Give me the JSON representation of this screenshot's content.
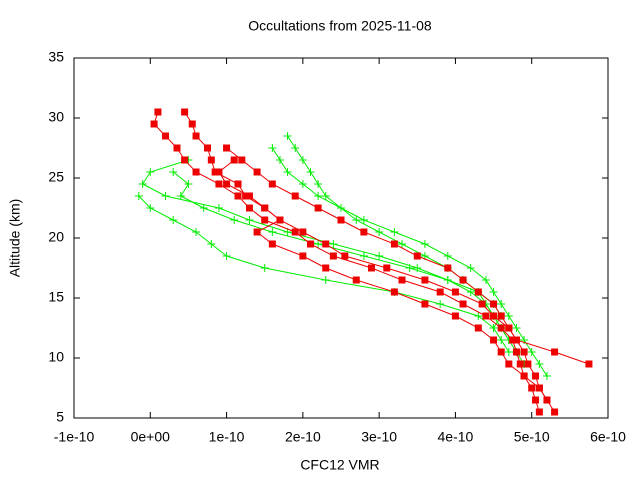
{
  "chart_data": {
    "type": "line",
    "title": "Occultations from 2025-11-08",
    "x_label": "CFC12 VMR",
    "y_label": "Altitude (km)",
    "xlim": [
      -1e-10,
      6e-10
    ],
    "ylim": [
      5,
      35
    ],
    "xticks": [
      {
        "value": -1e-10,
        "label": "-1e-10"
      },
      {
        "value": 0,
        "label": "0e+00"
      },
      {
        "value": 1e-10,
        "label": "1e-10"
      },
      {
        "value": 2e-10,
        "label": "2e-10"
      },
      {
        "value": 3e-10,
        "label": "3e-10"
      },
      {
        "value": 4e-10,
        "label": "4e-10"
      },
      {
        "value": 5e-10,
        "label": "5e-10"
      },
      {
        "value": 6e-10,
        "label": "6e-10"
      }
    ],
    "yticks": [
      5,
      10,
      15,
      20,
      25,
      30,
      35
    ],
    "grid": false,
    "series": [
      {
        "color": "#00ee00",
        "marker": "plus",
        "x": [
          1.6e-10,
          1.7e-10,
          1.8e-10,
          2e-10,
          2.2e-10,
          2.5e-10,
          2.8e-10,
          3.2e-10,
          3.6e-10,
          3.9e-10,
          4.2e-10,
          4.4e-10,
          4.5e-10,
          4.6e-10,
          4.7e-10,
          4.8e-10,
          4.9e-10,
          5e-10,
          5.1e-10,
          5.2e-10
        ],
        "y": [
          27.5,
          26.5,
          25.5,
          24.5,
          23.5,
          22.5,
          21.5,
          20.5,
          19.5,
          18.5,
          17.5,
          16.5,
          15.5,
          14.5,
          13.5,
          12.5,
          11.5,
          10.5,
          9.5,
          8.5
        ]
      },
      {
        "color": "#00ee00",
        "marker": "plus",
        "x": [
          -1.5e-11,
          0,
          3e-11,
          6e-11,
          8e-11,
          1e-10,
          1.5e-10,
          2.3e-10,
          3.2e-10,
          3.8e-10,
          4.3e-10,
          4.5e-10,
          4.6e-10,
          4.7e-10
        ],
        "y": [
          23.5,
          22.5,
          21.5,
          20.5,
          19.5,
          18.5,
          17.5,
          16.5,
          15.5,
          14.5,
          13.5,
          12.5,
          11.5,
          10.5
        ]
      },
      {
        "color": "#00ee00",
        "marker": "plus",
        "x": [
          5e-11,
          0,
          -1e-11,
          2e-11,
          9e-11,
          1.3e-10,
          1.8e-10,
          2.4e-10,
          3e-10,
          3.5e-10,
          3.9e-10,
          4.2e-10,
          4.4e-10,
          4.5e-10,
          4.6e-10,
          4.7e-10
        ],
        "y": [
          26.5,
          25.5,
          24.5,
          23.5,
          22.5,
          21.5,
          20.5,
          19.5,
          18.5,
          17.5,
          16.5,
          15.5,
          14.5,
          13.5,
          12.5,
          11.5
        ]
      },
      {
        "color": "#00ee00",
        "marker": "plus",
        "x": [
          1.8e-10,
          1.9e-10,
          2e-10,
          2.1e-10,
          2.2e-10,
          2.3e-10,
          2.5e-10,
          2.7e-10,
          3e-10,
          3.3e-10,
          3.6e-10,
          3.9e-10,
          4.1e-10,
          4.3e-10,
          4.4e-10,
          4.5e-10,
          4.6e-10,
          4.7e-10,
          4.8e-10,
          4.9e-10
        ],
        "y": [
          28.5,
          27.5,
          26.5,
          25.5,
          24.5,
          23.5,
          22.5,
          21.5,
          20.5,
          19.5,
          18.5,
          17.5,
          16.5,
          15.5,
          14.5,
          13.5,
          12.5,
          11.5,
          10.5,
          9.5
        ]
      },
      {
        "color": "#00ee00",
        "marker": "plus",
        "x": [
          3e-11,
          5e-11,
          4e-11,
          7e-11,
          1.1e-10,
          1.6e-10,
          2.2e-10,
          2.8e-10,
          3.4e-10,
          3.9e-10,
          4.3e-10,
          4.5e-10,
          4.6e-10,
          4.5e-10
        ],
        "y": [
          25.5,
          24.5,
          23.5,
          22.5,
          21.5,
          20.5,
          19.5,
          18.5,
          17.5,
          16.5,
          15.5,
          14.5,
          13.5,
          12.5
        ]
      },
      {
        "color": "#ee0000",
        "marker": "square",
        "x": [
          1e-11,
          5e-12,
          2e-11,
          3.5e-11,
          4.5e-11,
          6e-11,
          9e-11,
          1.15e-10,
          1.3e-10,
          1.5e-10,
          1.9e-10,
          2.1e-10,
          2.4e-10,
          2.9e-10,
          3.3e-10,
          3.8e-10,
          4.1e-10,
          4.4e-10,
          4.6e-10,
          4.75e-10,
          4.8e-10,
          4.85e-10,
          4.9e-10,
          5e-10,
          5.05e-10,
          5.1e-10
        ],
        "y": [
          30.5,
          29.5,
          28.5,
          27.5,
          26.5,
          25.5,
          24.5,
          23.5,
          22.5,
          21.5,
          20.5,
          19.5,
          18.5,
          17.5,
          16.5,
          15.5,
          14.5,
          13.5,
          12.5,
          11.5,
          10.5,
          9.5,
          8.5,
          7.5,
          6.5,
          5.5
        ]
      },
      {
        "color": "#ee0000",
        "marker": "square",
        "x": [
          4.5e-11,
          5.5e-11,
          6e-11,
          7.5e-11,
          8e-11,
          8.5e-11,
          1.15e-10,
          1.25e-10,
          1.5e-10,
          1.7e-10,
          2e-10,
          2.3e-10,
          2.55e-10,
          3.1e-10,
          3.6e-10,
          4e-10,
          4.35e-10,
          4.5e-10,
          4.7e-10,
          4.8e-10,
          4.9e-10,
          4.95e-10,
          5.05e-10,
          5.1e-10,
          5.2e-10,
          5.3e-10
        ],
        "y": [
          30.5,
          29.5,
          28.5,
          27.5,
          26.5,
          25.5,
          24.5,
          23.5,
          22.5,
          21.5,
          20.5,
          19.5,
          18.5,
          17.5,
          16.5,
          15.5,
          14.5,
          13.5,
          12.5,
          11.5,
          10.5,
          9.5,
          8.5,
          7.5,
          6.5,
          5.5
        ]
      },
      {
        "color": "#ee0000",
        "marker": "square",
        "x": [
          1e-10,
          1.2e-10,
          1.4e-10,
          1.6e-10,
          1.9e-10,
          2.2e-10,
          2.5e-10,
          2.8e-10,
          3.2e-10,
          3.5e-10,
          3.9e-10,
          4.1e-10,
          4.3e-10,
          4.5e-10,
          4.6e-10,
          4.7e-10,
          4.8e-10,
          5.3e-10,
          5.75e-10
        ],
        "y": [
          27.5,
          26.5,
          25.5,
          24.5,
          23.5,
          22.5,
          21.5,
          20.5,
          19.5,
          18.5,
          17.5,
          16.5,
          15.5,
          14.5,
          13.5,
          12.5,
          11.5,
          10.5,
          9.5
        ]
      },
      {
        "color": "#ee0000",
        "marker": "square",
        "x": [
          1.1e-10,
          9e-11,
          1e-10,
          1.3e-10,
          1.5e-10,
          1.7e-10,
          1.4e-10,
          1.6e-10,
          2e-10,
          2.3e-10,
          2.7e-10,
          3.2e-10,
          3.6e-10,
          4e-10,
          4.3e-10,
          4.5e-10,
          4.6e-10,
          4.7e-10,
          4.9e-10,
          5.1e-10,
          5.2e-10
        ],
        "y": [
          26.5,
          25.5,
          24.5,
          23.5,
          22.5,
          21.5,
          20.5,
          19.5,
          18.5,
          17.5,
          16.5,
          15.5,
          14.5,
          13.5,
          12.5,
          11.5,
          10.5,
          9.5,
          8.5,
          7.5,
          6.5
        ]
      }
    ]
  }
}
